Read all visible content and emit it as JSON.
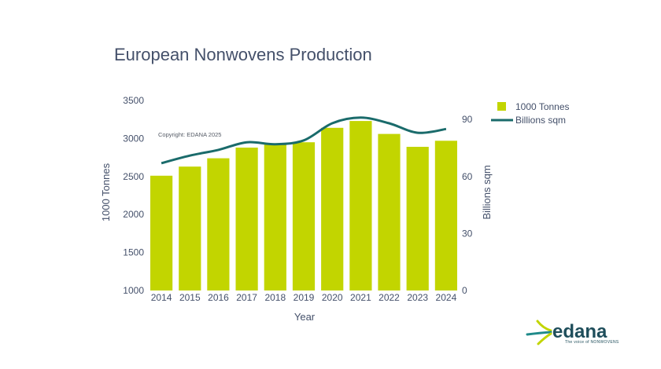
{
  "chart_data": {
    "type": "bar",
    "title": "European Nonwovens Production",
    "xlabel": "Year",
    "ylabel": "1000 Tonnes",
    "y2label": "Billions sqm",
    "categories": [
      "2014",
      "2015",
      "2016",
      "2017",
      "2018",
      "2019",
      "2020",
      "2021",
      "2022",
      "2023",
      "2024"
    ],
    "ylim": [
      1000,
      3500
    ],
    "y2lim": [
      0,
      100
    ],
    "yticks": [
      1000,
      1500,
      2000,
      2500,
      3000,
      3500
    ],
    "y2ticks": [
      0,
      30,
      60,
      90
    ],
    "series": [
      {
        "name": "1000 Tonnes",
        "type": "bar",
        "axis": "left",
        "color": "#c2d500",
        "values": [
          2510,
          2630,
          2740,
          2880,
          2920,
          2950,
          3140,
          3230,
          3060,
          2890,
          2970
        ]
      },
      {
        "name": "Billions sqm",
        "type": "line",
        "axis": "right",
        "color": "#1a6b6b",
        "values": [
          67,
          71,
          74,
          78,
          77,
          79,
          88,
          91,
          88,
          83,
          85
        ]
      }
    ],
    "legend_position": "top-right",
    "grid": false,
    "annotation": "Copyright: EDANA 2025"
  },
  "logo": {
    "text": "edana",
    "tagline": "The voice of NONWOVENS"
  }
}
